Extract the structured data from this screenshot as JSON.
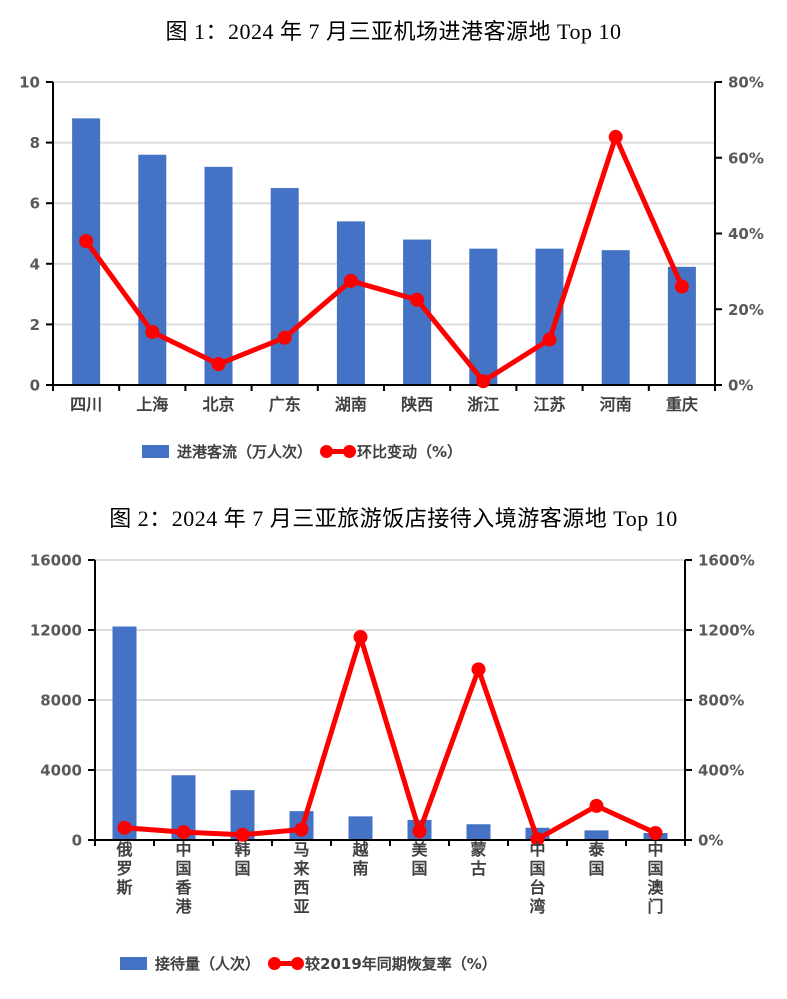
{
  "page": {
    "background": "#ffffff"
  },
  "colors": {
    "bar_fill": "#4472C4",
    "line_stroke": "#FF0000",
    "grid": "#DCDCDC",
    "axis_line": "#000000",
    "tick_label": "#595959",
    "category_label": "#404040",
    "title": "#000000"
  },
  "chart_data": [
    {
      "type": "bar",
      "subtype": "bar+line combo, dual axis",
      "title": "图 1：2024 年 7 月三亚机场进港客源地 Top 10",
      "categories": [
        "四川",
        "上海",
        "北京",
        "广东",
        "湖南",
        "陕西",
        "浙江",
        "江苏",
        "河南",
        "重庆"
      ],
      "series": [
        {
          "name": "进港客流（万人次）",
          "type": "bar",
          "axis": "left",
          "color": "#4472C4",
          "values": [
            8.8,
            7.6,
            7.2,
            6.5,
            5.4,
            4.8,
            4.5,
            4.5,
            4.45,
            3.9
          ]
        },
        {
          "name": "环比变动（%）",
          "type": "line",
          "axis": "right",
          "color": "#FF0000",
          "values": [
            38,
            14,
            5.5,
            12.5,
            27.5,
            22.5,
            1,
            12,
            65.5,
            26
          ]
        }
      ],
      "left_axis": {
        "min": 0,
        "max": 10,
        "tick_values": [
          0,
          2,
          4,
          6,
          8,
          10
        ],
        "tick_labels": [
          "0",
          "2",
          "4",
          "6",
          "8",
          "10"
        ]
      },
      "right_axis": {
        "min": 0,
        "max": 80,
        "tick_values": [
          0,
          20,
          40,
          60,
          80
        ],
        "tick_labels": [
          "0%",
          "20%",
          "40%",
          "60%",
          "80%"
        ]
      },
      "grid": true,
      "legend_position": "bottom",
      "category_label_orientation": "horizontal"
    },
    {
      "type": "bar",
      "subtype": "bar+line combo, dual axis",
      "title": "图 2：2024 年 7 月三亚旅游饭店接待入境游客源地 Top 10",
      "categories": [
        "俄罗斯",
        "中国香港",
        "韩国",
        "马来西亚",
        "越南",
        "美国",
        "蒙古",
        "中国台湾",
        "泰国",
        "中国澳门"
      ],
      "series": [
        {
          "name": "接待量（人次）",
          "type": "bar",
          "axis": "left",
          "color": "#4472C4",
          "values": [
            12200,
            3700,
            2850,
            1650,
            1350,
            1150,
            900,
            700,
            550,
            400
          ]
        },
        {
          "name": "较2019年同期恢复率（%）",
          "type": "line",
          "axis": "right",
          "color": "#FF0000",
          "values": [
            70,
            45,
            30,
            60,
            1160,
            50,
            975,
            5,
            195,
            40
          ]
        }
      ],
      "left_axis": {
        "min": 0,
        "max": 16000,
        "tick_values": [
          0,
          4000,
          8000,
          12000,
          16000
        ],
        "tick_labels": [
          "0",
          "4000",
          "8000",
          "12000",
          "16000"
        ]
      },
      "right_axis": {
        "min": 0,
        "max": 1600,
        "tick_values": [
          0,
          400,
          800,
          1200,
          1600
        ],
        "tick_labels": [
          "0%",
          "400%",
          "800%",
          "1200%",
          "1600%"
        ]
      },
      "grid": true,
      "legend_position": "bottom",
      "category_label_orientation": "vertical"
    }
  ]
}
